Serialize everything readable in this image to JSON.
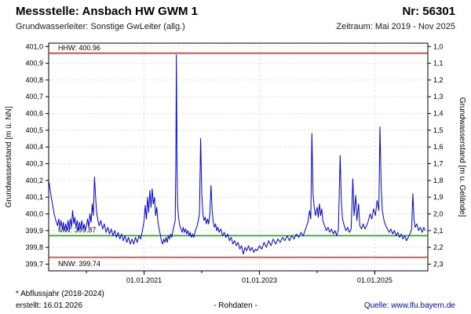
{
  "header": {
    "title": "Messstelle: Ansbach HW GWM 1",
    "station_number": "Nr: 56301",
    "aquifer": "Grundwasserleiter: Sonstige GwLeiter (allg.)",
    "period": "Zeitraum: Mai 2019 - Nov 2025"
  },
  "footer": {
    "footnote": "* Abflussjahr (2018-2024)",
    "created": "erstellt: 16.01.2026",
    "center_label": "- Rohdaten -",
    "source_label": "Quelle: ",
    "source_link": "www.lfu.bayern.de",
    "link_color": "#0000cc"
  },
  "chart_data": {
    "type": "line",
    "title": "",
    "ylabel_left": "Grundwasserstand [m ü. NN]",
    "ylabel_right": "Grundwasserstand [m u. Gelände]",
    "ylim_left": [
      399.66,
      401.02
    ],
    "xlim": [
      2019.345,
      2025.92
    ],
    "grid": true,
    "y_ticks_left": {
      "values": [
        401.0,
        400.9,
        400.8,
        400.7,
        400.6,
        400.5,
        400.4,
        400.3,
        400.2,
        400.1,
        400.0,
        399.9,
        399.8,
        399.7
      ],
      "labels": [
        "401,0",
        "400,9",
        "400,8",
        "400,7",
        "400,6",
        "400,5",
        "400,4",
        "400,3",
        "400,2",
        "400,1",
        "400,0",
        "399,9",
        "399,8",
        "399,7"
      ]
    },
    "y_ticks_right": {
      "labels": [
        "1,0",
        "1,1",
        "1,2",
        "1,3",
        "1,4",
        "1,5",
        "1,6",
        "1,7",
        "1,8",
        "1,9",
        "2,0",
        "2,1",
        "2,2",
        "2,3"
      ]
    },
    "x_ticks": [
      {
        "t": 2021.0,
        "label": "01.01.2021"
      },
      {
        "t": 2023.0,
        "label": "01.01.2023"
      },
      {
        "t": 2025.0,
        "label": "01.01.2025"
      }
    ],
    "x_minor_ticks": [
      2020,
      2021,
      2022,
      2023,
      2024,
      2025
    ],
    "reference_lines": [
      {
        "name": "HHW",
        "label": "HHW: 400.96",
        "value": 400.96,
        "color": "#ff0000",
        "label_position": "above"
      },
      {
        "name": "MW",
        "label": "MW: 399.87",
        "value": 399.87,
        "color": "#00a000",
        "label_position": "above"
      },
      {
        "name": "NNW",
        "label": "NNW: 399.74",
        "value": 399.74,
        "color": "#ff0000",
        "label_position": "below"
      }
    ],
    "series": [
      {
        "name": "Grundwasserstand Rohdaten",
        "color": "#0000e0",
        "points": [
          [
            2019.35,
            400.19
          ],
          [
            2019.38,
            400.12
          ],
          [
            2019.41,
            400.06
          ],
          [
            2019.44,
            400.0
          ],
          [
            2019.47,
            399.96
          ],
          [
            2019.5,
            399.93
          ],
          [
            2019.52,
            399.97
          ],
          [
            2019.54,
            399.92
          ],
          [
            2019.56,
            399.96
          ],
          [
            2019.58,
            399.91
          ],
          [
            2019.6,
            399.95
          ],
          [
            2019.62,
            399.9
          ],
          [
            2019.64,
            399.94
          ],
          [
            2019.66,
            399.9
          ],
          [
            2019.68,
            399.96
          ],
          [
            2019.7,
            399.91
          ],
          [
            2019.72,
            399.97
          ],
          [
            2019.74,
            399.92
          ],
          [
            2019.76,
            400.02
          ],
          [
            2019.78,
            399.94
          ],
          [
            2019.8,
            399.98
          ],
          [
            2019.82,
            399.92
          ],
          [
            2019.84,
            399.96
          ],
          [
            2019.86,
            399.9
          ],
          [
            2019.88,
            399.95
          ],
          [
            2019.9,
            399.91
          ],
          [
            2019.92,
            399.96
          ],
          [
            2019.94,
            399.91
          ],
          [
            2019.96,
            399.94
          ],
          [
            2019.98,
            399.9
          ],
          [
            2020.0,
            399.93
          ],
          [
            2020.02,
            399.97
          ],
          [
            2020.04,
            399.92
          ],
          [
            2020.06,
            400.0
          ],
          [
            2020.08,
            399.95
          ],
          [
            2020.1,
            400.06
          ],
          [
            2020.12,
            399.99
          ],
          [
            2020.14,
            400.22
          ],
          [
            2020.16,
            400.09
          ],
          [
            2020.18,
            400.0
          ],
          [
            2020.2,
            399.96
          ],
          [
            2020.22,
            399.93
          ],
          [
            2020.25,
            399.96
          ],
          [
            2020.28,
            399.91
          ],
          [
            2020.31,
            399.94
          ],
          [
            2020.34,
            399.89
          ],
          [
            2020.37,
            399.92
          ],
          [
            2020.4,
            399.88
          ],
          [
            2020.43,
            399.91
          ],
          [
            2020.46,
            399.87
          ],
          [
            2020.49,
            399.9
          ],
          [
            2020.52,
            399.86
          ],
          [
            2020.55,
            399.89
          ],
          [
            2020.58,
            399.85
          ],
          [
            2020.61,
            399.88
          ],
          [
            2020.64,
            399.84
          ],
          [
            2020.67,
            399.87
          ],
          [
            2020.7,
            399.83
          ],
          [
            2020.73,
            399.86
          ],
          [
            2020.76,
            399.82
          ],
          [
            2020.79,
            399.85
          ],
          [
            2020.82,
            399.82
          ],
          [
            2020.85,
            399.86
          ],
          [
            2020.88,
            399.83
          ],
          [
            2020.91,
            399.87
          ],
          [
            2020.94,
            399.85
          ],
          [
            2020.97,
            399.9
          ],
          [
            2021.0,
            399.96
          ],
          [
            2021.02,
            400.05
          ],
          [
            2021.04,
            399.97
          ],
          [
            2021.06,
            400.1
          ],
          [
            2021.08,
            400.01
          ],
          [
            2021.1,
            400.14
          ],
          [
            2021.12,
            400.04
          ],
          [
            2021.14,
            400.15
          ],
          [
            2021.16,
            400.06
          ],
          [
            2021.18,
            400.1
          ],
          [
            2021.2,
            399.99
          ],
          [
            2021.22,
            400.04
          ],
          [
            2021.24,
            399.95
          ],
          [
            2021.26,
            399.91
          ],
          [
            2021.28,
            399.88
          ],
          [
            2021.3,
            399.84
          ],
          [
            2021.32,
            399.82
          ],
          [
            2021.34,
            399.85
          ],
          [
            2021.36,
            399.83
          ],
          [
            2021.38,
            399.86
          ],
          [
            2021.4,
            399.83
          ],
          [
            2021.42,
            399.87
          ],
          [
            2021.44,
            399.85
          ],
          [
            2021.46,
            399.88
          ],
          [
            2021.48,
            399.86
          ],
          [
            2021.5,
            399.9
          ],
          [
            2021.52,
            399.93
          ],
          [
            2021.54,
            399.96
          ],
          [
            2021.55,
            400.3
          ],
          [
            2021.56,
            400.95
          ],
          [
            2021.57,
            400.35
          ],
          [
            2021.58,
            400.05
          ],
          [
            2021.6,
            399.97
          ],
          [
            2021.62,
            399.93
          ],
          [
            2021.64,
            399.91
          ],
          [
            2021.66,
            399.89
          ],
          [
            2021.68,
            399.92
          ],
          [
            2021.7,
            399.89
          ],
          [
            2021.72,
            399.91
          ],
          [
            2021.74,
            399.88
          ],
          [
            2021.76,
            399.9
          ],
          [
            2021.78,
            399.87
          ],
          [
            2021.8,
            399.89
          ],
          [
            2021.82,
            399.86
          ],
          [
            2021.84,
            399.88
          ],
          [
            2021.86,
            399.86
          ],
          [
            2021.88,
            399.89
          ],
          [
            2021.9,
            399.91
          ],
          [
            2021.92,
            399.93
          ],
          [
            2021.94,
            399.96
          ],
          [
            2021.96,
            400.0
          ],
          [
            2021.98,
            400.45
          ],
          [
            2022.0,
            400.12
          ],
          [
            2022.02,
            400.0
          ],
          [
            2022.04,
            399.96
          ],
          [
            2022.06,
            399.98
          ],
          [
            2022.08,
            399.94
          ],
          [
            2022.1,
            399.97
          ],
          [
            2022.12,
            399.94
          ],
          [
            2022.14,
            400.0
          ],
          [
            2022.16,
            400.17
          ],
          [
            2022.18,
            400.02
          ],
          [
            2022.2,
            399.95
          ],
          [
            2022.22,
            399.92
          ],
          [
            2022.24,
            399.94
          ],
          [
            2022.26,
            399.9
          ],
          [
            2022.28,
            399.92
          ],
          [
            2022.3,
            399.89
          ],
          [
            2022.33,
            399.91
          ],
          [
            2022.36,
            399.87
          ],
          [
            2022.39,
            399.89
          ],
          [
            2022.42,
            399.86
          ],
          [
            2022.45,
            399.88
          ],
          [
            2022.48,
            399.84
          ],
          [
            2022.51,
            399.86
          ],
          [
            2022.54,
            399.82
          ],
          [
            2022.57,
            399.84
          ],
          [
            2022.6,
            399.81
          ],
          [
            2022.63,
            399.83
          ],
          [
            2022.66,
            399.79
          ],
          [
            2022.69,
            399.81
          ],
          [
            2022.72,
            399.76
          ],
          [
            2022.75,
            399.8
          ],
          [
            2022.78,
            399.78
          ],
          [
            2022.81,
            399.81
          ],
          [
            2022.84,
            399.78
          ],
          [
            2022.87,
            399.8
          ],
          [
            2022.9,
            399.77
          ],
          [
            2022.93,
            399.79
          ],
          [
            2022.96,
            399.78
          ],
          [
            2023.0,
            399.81
          ],
          [
            2023.04,
            399.79
          ],
          [
            2023.08,
            399.83
          ],
          [
            2023.12,
            399.8
          ],
          [
            2023.16,
            399.84
          ],
          [
            2023.2,
            399.81
          ],
          [
            2023.24,
            399.85
          ],
          [
            2023.28,
            399.82
          ],
          [
            2023.32,
            399.85
          ],
          [
            2023.36,
            399.83
          ],
          [
            2023.4,
            399.86
          ],
          [
            2023.44,
            399.84
          ],
          [
            2023.48,
            399.87
          ],
          [
            2023.52,
            399.84
          ],
          [
            2023.56,
            399.87
          ],
          [
            2023.6,
            399.85
          ],
          [
            2023.64,
            399.88
          ],
          [
            2023.68,
            399.86
          ],
          [
            2023.72,
            399.89
          ],
          [
            2023.76,
            399.87
          ],
          [
            2023.8,
            399.91
          ],
          [
            2023.84,
            399.95
          ],
          [
            2023.87,
            400.02
          ],
          [
            2023.89,
            399.97
          ],
          [
            2023.91,
            400.48
          ],
          [
            2023.93,
            400.12
          ],
          [
            2023.95,
            400.04
          ],
          [
            2023.97,
            399.99
          ],
          [
            2024.0,
            400.04
          ],
          [
            2024.02,
            399.98
          ],
          [
            2024.04,
            400.06
          ],
          [
            2024.06,
            399.99
          ],
          [
            2024.08,
            400.03
          ],
          [
            2024.1,
            399.96
          ],
          [
            2024.13,
            399.93
          ],
          [
            2024.16,
            399.9
          ],
          [
            2024.19,
            399.92
          ],
          [
            2024.22,
            399.89
          ],
          [
            2024.25,
            399.91
          ],
          [
            2024.28,
            399.88
          ],
          [
            2024.31,
            399.9
          ],
          [
            2024.34,
            399.87
          ],
          [
            2024.37,
            399.91
          ],
          [
            2024.4,
            400.35
          ],
          [
            2024.42,
            400.08
          ],
          [
            2024.44,
            399.97
          ],
          [
            2024.47,
            399.93
          ],
          [
            2024.5,
            399.9
          ],
          [
            2024.53,
            399.92
          ],
          [
            2024.56,
            399.89
          ],
          [
            2024.59,
            399.91
          ],
          [
            2024.62,
            400.21
          ],
          [
            2024.64,
            399.99
          ],
          [
            2024.67,
            400.11
          ],
          [
            2024.69,
            399.96
          ],
          [
            2024.72,
            400.06
          ],
          [
            2024.74,
            399.93
          ],
          [
            2024.77,
            399.91
          ],
          [
            2024.8,
            399.94
          ],
          [
            2024.83,
            399.91
          ],
          [
            2024.86,
            399.93
          ],
          [
            2024.89,
            399.96
          ],
          [
            2024.92,
            400.0
          ],
          [
            2024.95,
            399.97
          ],
          [
            2024.98,
            400.03
          ],
          [
            2025.01,
            399.99
          ],
          [
            2025.04,
            400.08
          ],
          [
            2025.07,
            400.02
          ],
          [
            2025.09,
            400.52
          ],
          [
            2025.11,
            400.18
          ],
          [
            2025.13,
            400.02
          ],
          [
            2025.16,
            399.96
          ],
          [
            2025.19,
            399.93
          ],
          [
            2025.22,
            399.91
          ],
          [
            2025.25,
            399.89
          ],
          [
            2025.28,
            399.91
          ],
          [
            2025.31,
            399.88
          ],
          [
            2025.34,
            399.9
          ],
          [
            2025.37,
            399.87
          ],
          [
            2025.4,
            399.89
          ],
          [
            2025.43,
            399.86
          ],
          [
            2025.46,
            399.88
          ],
          [
            2025.49,
            399.85
          ],
          [
            2025.52,
            399.87
          ],
          [
            2025.55,
            399.84
          ],
          [
            2025.58,
            399.86
          ],
          [
            2025.61,
            399.88
          ],
          [
            2025.64,
            399.91
          ],
          [
            2025.66,
            400.12
          ],
          [
            2025.68,
            399.97
          ],
          [
            2025.7,
            399.92
          ],
          [
            2025.73,
            399.94
          ],
          [
            2025.76,
            399.9
          ],
          [
            2025.79,
            399.92
          ],
          [
            2025.82,
            399.89
          ],
          [
            2025.85,
            399.92
          ],
          [
            2025.87,
            399.9
          ]
        ]
      }
    ]
  }
}
